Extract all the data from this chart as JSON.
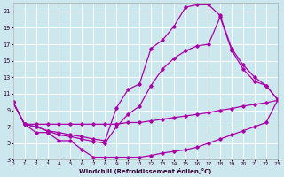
{
  "xlabel": "Windchill (Refroidissement éolien,°C)",
  "bg_color": "#cce8ee",
  "line_color": "#aa00aa",
  "grid_color": "#ffffff",
  "xmin": 0,
  "xmax": 23,
  "ymin": 3,
  "ymax": 22,
  "yticks": [
    3,
    5,
    7,
    9,
    11,
    13,
    15,
    17,
    19,
    21
  ],
  "xticks": [
    0,
    1,
    2,
    3,
    4,
    5,
    6,
    7,
    8,
    9,
    10,
    11,
    12,
    13,
    14,
    15,
    16,
    17,
    18,
    19,
    20,
    21,
    22,
    23
  ],
  "series": [
    {
      "x": [
        0,
        1,
        2,
        3,
        4,
        5,
        6,
        7,
        8,
        9,
        10,
        11,
        12,
        13,
        14,
        15,
        16,
        17,
        18,
        19,
        20,
        21,
        22,
        23
      ],
      "y": [
        10,
        7.3,
        7.3,
        7.3,
        7.3,
        7.3,
        7.3,
        7.3,
        7.3,
        7.3,
        7.5,
        7.5,
        7.7,
        7.9,
        8.1,
        8.3,
        8.5,
        8.7,
        9.0,
        9.2,
        9.5,
        9.7,
        9.9,
        10.2
      ]
    },
    {
      "x": [
        0,
        1,
        2,
        3,
        4,
        5,
        6,
        7,
        8,
        9,
        10,
        11,
        12,
        13,
        14,
        15,
        16,
        17,
        18,
        19,
        20,
        21,
        22,
        23
      ],
      "y": [
        10,
        7.3,
        6.3,
        6.3,
        5.3,
        5.3,
        4.2,
        3.3,
        3.3,
        3.3,
        3.3,
        3.3,
        3.5,
        3.8,
        4.0,
        4.2,
        4.5,
        5.0,
        5.5,
        6.0,
        6.5,
        7.0,
        7.5,
        10.2
      ]
    },
    {
      "x": [
        0,
        1,
        2,
        3,
        4,
        5,
        6,
        7,
        8,
        9,
        10,
        11,
        12,
        13,
        14,
        15,
        16,
        17,
        18,
        19,
        20,
        21,
        22,
        23
      ],
      "y": [
        10,
        7.3,
        7.0,
        6.5,
        6.3,
        6.0,
        5.8,
        5.5,
        5.3,
        9.3,
        11.5,
        12.2,
        16.5,
        17.5,
        19.2,
        21.5,
        21.8,
        21.8,
        20.5,
        16.5,
        14.5,
        13.0,
        12.0,
        10.3
      ]
    },
    {
      "x": [
        0,
        1,
        2,
        3,
        4,
        5,
        6,
        7,
        8,
        9,
        10,
        11,
        12,
        13,
        14,
        15,
        16,
        17,
        18,
        19,
        20,
        21,
        22,
        23
      ],
      "y": [
        10,
        7.3,
        7.0,
        6.5,
        6.0,
        5.8,
        5.5,
        5.2,
        5.0,
        7.0,
        8.5,
        9.5,
        12.0,
        14.0,
        15.3,
        16.2,
        16.8,
        17.0,
        20.3,
        16.3,
        14.0,
        12.5,
        12.0,
        10.3
      ]
    }
  ]
}
